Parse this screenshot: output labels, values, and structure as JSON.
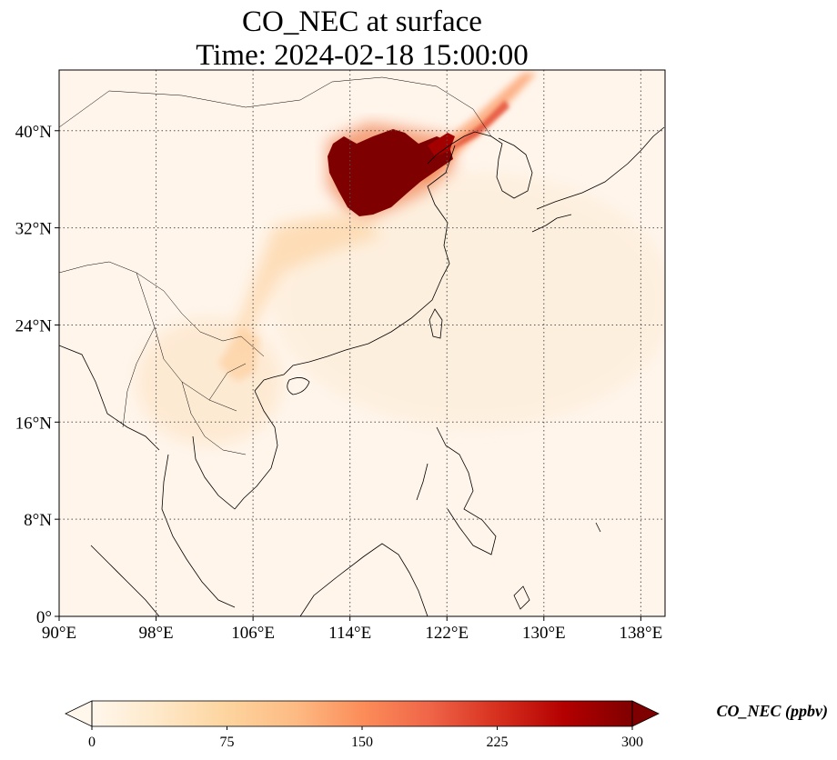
{
  "title": {
    "line1": "CO_NEC at surface",
    "line2": "Time: 2024-02-18 15:00:00"
  },
  "map": {
    "lon_range": [
      90,
      140
    ],
    "lat_range": [
      0,
      45
    ],
    "lon_ticks": [
      90,
      98,
      106,
      114,
      122,
      130,
      138
    ],
    "lat_ticks": [
      0,
      8,
      16,
      24,
      32,
      40
    ],
    "lon_labels": [
      "90°E",
      "98°E",
      "106°E",
      "114°E",
      "122°E",
      "130°E",
      "138°E"
    ],
    "lat_labels": [
      "0°",
      "8°N",
      "16°N",
      "24°N",
      "32°N",
      "40°N"
    ],
    "gridlines": "dotted",
    "background_color": "#fff5eb"
  },
  "colorbar": {
    "label": "CO_NEC (ppbv)",
    "min": 0,
    "max": 300,
    "ticks": [
      0,
      75,
      150,
      225,
      300
    ],
    "tick_labels": [
      "0",
      "75",
      "150",
      "225",
      "300"
    ],
    "colormap": "OrRd",
    "extend": "both",
    "colors": [
      "#fff7ec",
      "#fee8c8",
      "#fdd49e",
      "#fdbb84",
      "#fc8d59",
      "#ef6548",
      "#d7301f",
      "#b30000",
      "#7f0000"
    ]
  }
}
